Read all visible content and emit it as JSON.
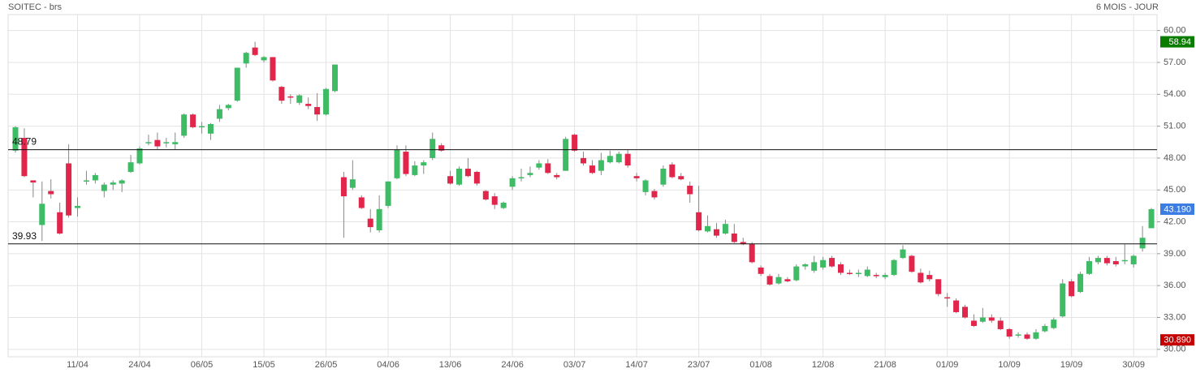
{
  "chart_data": {
    "type": "candlestick",
    "title": "SOITEC - brs",
    "subtitle": "6 MOIS - JOUR",
    "categories": [
      null,
      null,
      null,
      null,
      null,
      null,
      null,
      "11/04",
      null,
      null,
      null,
      null,
      null,
      null,
      "24/04",
      null,
      null,
      null,
      null,
      null,
      null,
      "06/05",
      null,
      null,
      null,
      null,
      null,
      null,
      "15/05",
      null,
      null,
      null,
      null,
      null,
      null,
      "26/05",
      null,
      null,
      null,
      null,
      null,
      null,
      "04/06",
      null,
      null,
      null,
      null,
      null,
      null,
      "13/06",
      null,
      null,
      null,
      null,
      null,
      null,
      "24/06",
      null,
      null,
      null,
      null,
      null,
      null,
      "03/07",
      null,
      null,
      null,
      null,
      null,
      null,
      "14/07",
      null,
      null,
      null,
      null,
      null,
      null,
      "23/07",
      null,
      null,
      null,
      null,
      null,
      null,
      "01/08",
      null,
      null,
      null,
      null,
      null,
      null,
      "12/08",
      null,
      null,
      null,
      null,
      null,
      null,
      "21/08",
      null,
      null,
      null,
      null,
      null,
      null,
      "01/09",
      null,
      null,
      null,
      null,
      null,
      null,
      "10/09",
      null,
      null,
      null,
      null,
      null,
      null,
      "19/09",
      null,
      null,
      null,
      null,
      null,
      null,
      "30/09",
      null,
      null
    ],
    "open": [
      48.7,
      49.9,
      45.9,
      41.7,
      44.9,
      42.9,
      47.5,
      43.3,
      45.8,
      45.9,
      44.9,
      45.5,
      45.6,
      46.7,
      47.5,
      49.4,
      49.7,
      49.4,
      49.3,
      50.1,
      52.1,
      50.9,
      50.3,
      51.7,
      52.7,
      53.4,
      56.9,
      58.4,
      57.2,
      57.5,
      54.7,
      53.8,
      53.2,
      53.1,
      52.8,
      52.1,
      54.3,
      46.2,
      45.2,
      44.3,
      42.3,
      41.2,
      43.5,
      46.1,
      48.6,
      46.4,
      47.3,
      48,
      49.2,
      46.3,
      45.5,
      47,
      46.7,
      44.9,
      44.4,
      43.3,
      45.3,
      46.1,
      46.4,
      47.1,
      47.5,
      46.4,
      46.8,
      50.2,
      48,
      47.3,
      46.8,
      47.6,
      47.6,
      48.4,
      46.3,
      44.8,
      44.9,
      45.5,
      47.4,
      46.3,
      45.4,
      42.9,
      41.1,
      41.3,
      40.9,
      40.9,
      40.1,
      39.9,
      37.7,
      36.9,
      36.2,
      36.6,
      36.5,
      37.8,
      37.4,
      37.7,
      38.6,
      38,
      37.2,
      37.1,
      36.9,
      37,
      36.8,
      37,
      38.6,
      38.8,
      37.2,
      37,
      36.6,
      34.9,
      34.6,
      34,
      32.7,
      32.6,
      33,
      32.7,
      31.9,
      31.3,
      31.4,
      31,
      31.7,
      32,
      33.1,
      36.4,
      35.4,
      37.1,
      38.2,
      38.6,
      38.3,
      38.3,
      38,
      39.5,
      41.4
    ],
    "high": [
      51,
      50.8,
      45.9,
      45.8,
      46,
      43.8,
      49.3,
      44.3,
      46.8,
      46.6,
      45.7,
      45.9,
      46,
      48.3,
      49.1,
      50.2,
      50.4,
      49.9,
      50.4,
      52.2,
      52.2,
      51.4,
      51.3,
      53,
      53.1,
      56.5,
      58,
      58.94,
      57.6,
      57.5,
      54.8,
      54,
      54,
      53.7,
      54.1,
      54.6,
      56.8,
      46.7,
      47.8,
      44.5,
      43.2,
      44.5,
      45.8,
      49.2,
      49.2,
      47.7,
      47.8,
      50.4,
      49.4,
      46.8,
      47.2,
      48,
      46.8,
      45,
      44.7,
      43.9,
      46.3,
      47,
      47.2,
      47.8,
      47.9,
      46.6,
      50,
      50.3,
      48.6,
      47.8,
      48.5,
      48.7,
      48.6,
      48.8,
      46.6,
      46,
      45.1,
      47.3,
      47.6,
      46.6,
      45.8,
      45.4,
      42.6,
      41.9,
      42.2,
      41.8,
      40.5,
      40.1,
      37.9,
      37.1,
      37.1,
      36.8,
      38,
      38.1,
      38.8,
      38.7,
      38.8,
      38.2,
      37.5,
      37.5,
      37.8,
      37.2,
      37.2,
      38.5,
      39.8,
      38.9,
      37.6,
      37.4,
      36.6,
      35.3,
      34.8,
      34.2,
      33.3,
      33.9,
      33.3,
      33,
      32,
      31.6,
      31.6,
      31.9,
      32.4,
      33,
      36.6,
      36.6,
      37.3,
      38.7,
      38.8,
      38.8,
      38.7,
      39.9,
      38.9,
      41.6,
      43.3
    ],
    "low": [
      48.5,
      46.2,
      44.3,
      40.2,
      44.2,
      40.8,
      42.4,
      42.5,
      45.5,
      45.6,
      44.3,
      45,
      44.8,
      46.6,
      47.4,
      49.2,
      48.8,
      49,
      48.8,
      49.9,
      50.8,
      50.3,
      49.7,
      51.4,
      52.5,
      53.3,
      56.5,
      57.6,
      57,
      55.2,
      53.1,
      53.1,
      53,
      52.6,
      51.5,
      52,
      54.2,
      40.5,
      45,
      43.2,
      41,
      41,
      43.3,
      46,
      46.3,
      46.3,
      46.5,
      47.8,
      48.6,
      45.5,
      45.4,
      46.2,
      45.4,
      44,
      43.2,
      43.2,
      45,
      45.8,
      46.2,
      46.9,
      46.5,
      46,
      46.8,
      48.6,
      47.3,
      46.5,
      46.4,
      47.5,
      47.5,
      47.1,
      45.8,
      44.5,
      44.1,
      45.3,
      46.1,
      45.9,
      43.8,
      41.1,
      41,
      40.5,
      40.8,
      40,
      39.8,
      38.1,
      36.9,
      36,
      36.1,
      36.3,
      36.4,
      37.5,
      37.2,
      37.5,
      37.7,
      37,
      37,
      36.8,
      36.8,
      36.7,
      36.6,
      36.9,
      38.5,
      37.2,
      36.2,
      36.4,
      35,
      34,
      33.4,
      32.9,
      32.1,
      32.5,
      32.5,
      31.8,
      31,
      31.1,
      30.89,
      30.9,
      31.6,
      31.9,
      33,
      34.9,
      35.3,
      37,
      38,
      37.9,
      37.8,
      38,
      37.7,
      39.2,
      41.4
    ],
    "close": [
      50.9,
      46.3,
      45.7,
      43.7,
      44.6,
      40.9,
      42.6,
      43.5,
      45.9,
      46.4,
      45.5,
      45.7,
      45.9,
      47.6,
      48.9,
      49.5,
      49.1,
      49.5,
      49.5,
      52.1,
      50.9,
      51,
      51.2,
      52.6,
      53,
      56.5,
      57.9,
      57.7,
      57.5,
      55.3,
      53.4,
      53.7,
      53.9,
      52.9,
      52.1,
      54.5,
      56.8,
      44.4,
      46,
      43.3,
      41.5,
      43.2,
      45.8,
      48.8,
      46.5,
      47.3,
      47.6,
      49.8,
      48.7,
      45.6,
      47,
      46.3,
      45.6,
      44.1,
      43.6,
      43.8,
      46.1,
      46.2,
      46.6,
      47.5,
      46.6,
      46.2,
      49.8,
      48.7,
      47.5,
      46.6,
      47.8,
      48.2,
      48.4,
      47.3,
      46.1,
      45.9,
      44.3,
      47,
      46.2,
      46,
      44.6,
      41.2,
      41.6,
      40.7,
      41.8,
      40.1,
      39.9,
      38.2,
      37.1,
      36.1,
      36.8,
      36.4,
      37.8,
      38,
      38.2,
      38.4,
      37.8,
      37.2,
      37.1,
      37.2,
      37.5,
      36.9,
      37,
      38.4,
      39.4,
      37.3,
      36.3,
      36.6,
      35.2,
      34.8,
      33.5,
      33,
      32.2,
      33,
      32.7,
      31.9,
      31.2,
      31.4,
      31,
      31.6,
      32.2,
      32.8,
      36.2,
      35,
      37.1,
      38.3,
      38.6,
      38.1,
      38,
      38.4,
      38.8,
      40.5,
      43.19
    ],
    "up_color": "#3dbb65",
    "down_color": "#e2264b",
    "ylim": [
      29.3,
      61.5
    ],
    "yticks": [
      {
        "value": 30,
        "label": "30.00"
      },
      {
        "value": 33,
        "label": "33.00"
      },
      {
        "value": 36,
        "label": "36.00"
      },
      {
        "value": 39,
        "label": "39.00"
      },
      {
        "value": 42,
        "label": "42.00"
      },
      {
        "value": 45,
        "label": "45.00"
      },
      {
        "value": 48,
        "label": "48.00"
      },
      {
        "value": 51,
        "label": "51.00"
      },
      {
        "value": 54,
        "label": "54.00"
      },
      {
        "value": 57,
        "label": "57.00"
      },
      {
        "value": 60,
        "label": "60.00"
      }
    ],
    "grid": true,
    "levels": [
      48.79,
      39.93
    ],
    "price_markers": [
      {
        "value": 58.94,
        "label": "58.94",
        "color": "#0a7d00"
      },
      {
        "value": 43.19,
        "label": "43.190",
        "color": "#3b7de3"
      },
      {
        "value": 30.89,
        "label": "30.890",
        "color": "#c50000"
      }
    ]
  }
}
